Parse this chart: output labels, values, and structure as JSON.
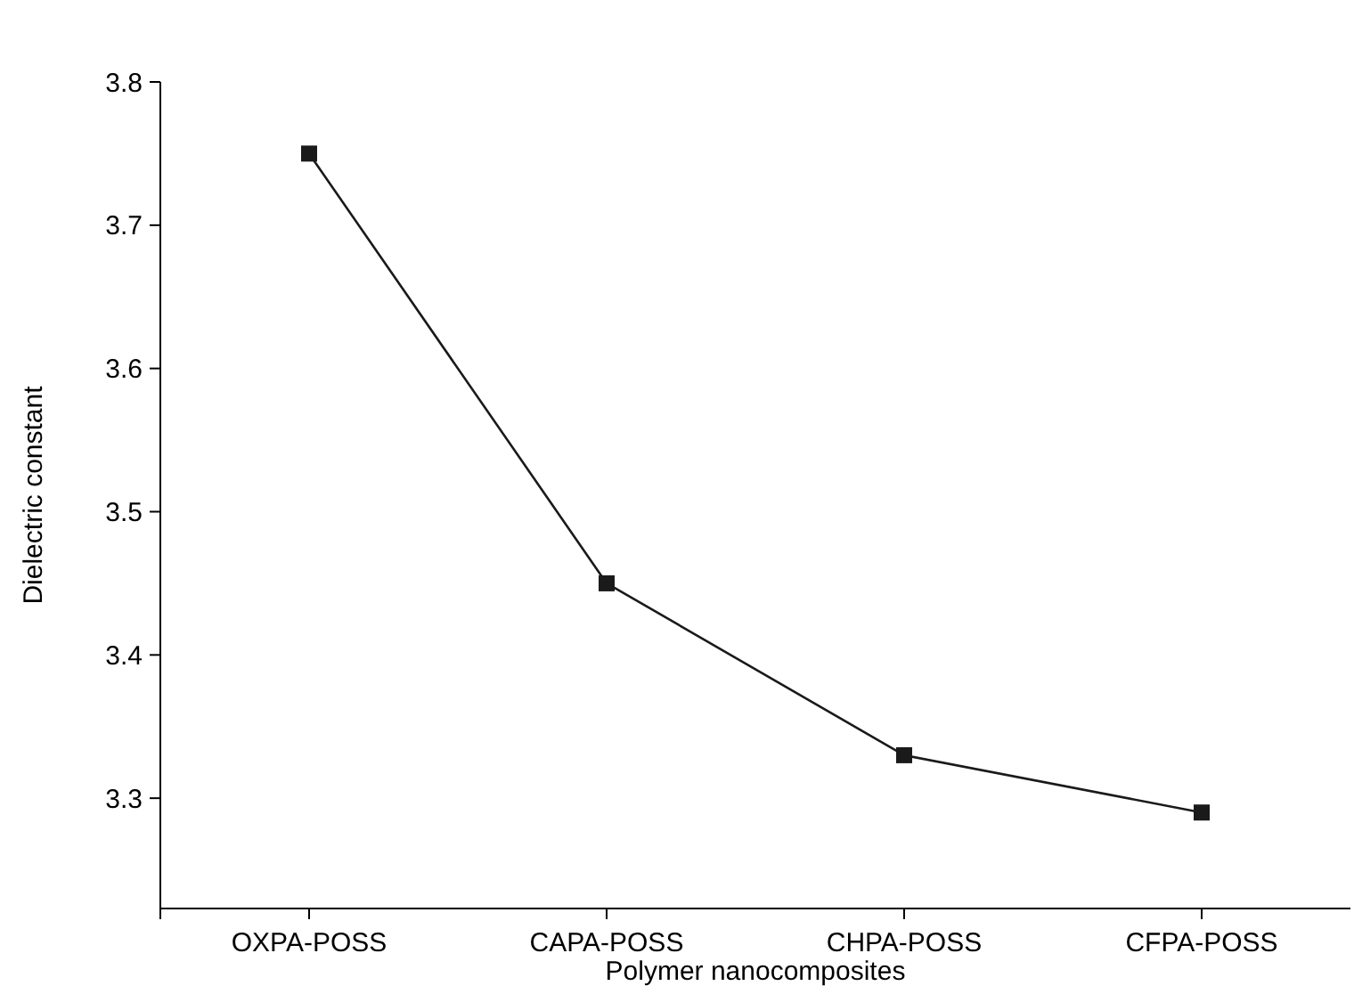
{
  "chart_data": {
    "type": "line",
    "xlabel": "Polymer nanocomposites",
    "ylabel": "Dielectric constant",
    "categories": [
      "OXPA-POSS",
      "CAPA-POSS",
      "CHPA-POSS",
      "CFPA-POSS"
    ],
    "series": [
      {
        "color": "#1a1a1a",
        "values": [
          3.75,
          3.45,
          3.33,
          3.29
        ]
      }
    ],
    "ylim": [
      3.223,
      3.8
    ],
    "yticks": [
      3.3,
      3.4,
      3.5,
      3.6,
      3.7,
      3.8
    ],
    "marker": "square",
    "line_style": "solid"
  }
}
